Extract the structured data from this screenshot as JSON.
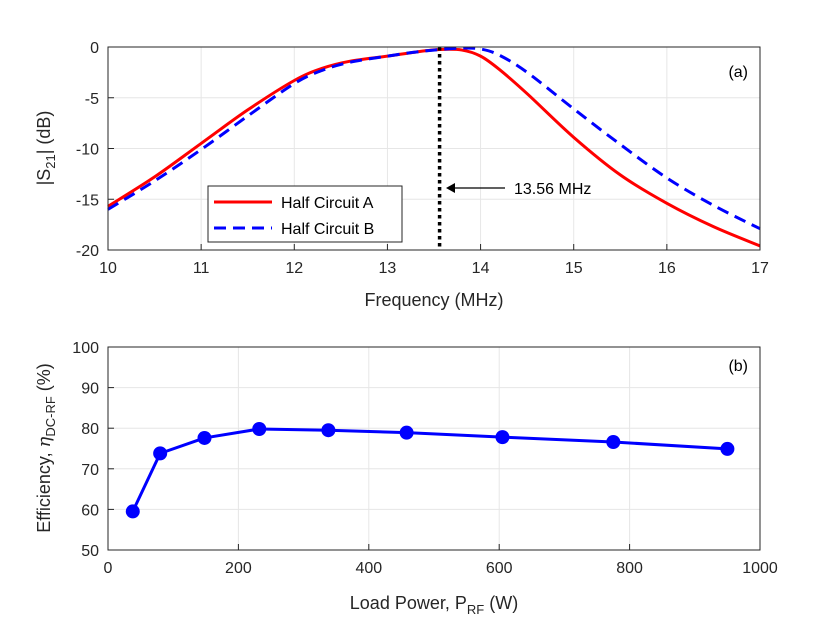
{
  "chart_data": [
    {
      "type": "line",
      "panel_label": "(a)",
      "xlabel": "Frequency (MHz)",
      "ylabel": "|S21| (dB)",
      "ylabel_main": "|S",
      "ylabel_sub": "21",
      "ylabel_tail": "| (dB)",
      "xlim": [
        10,
        17
      ],
      "ylim": [
        -20,
        0
      ],
      "xticks": [
        10,
        11,
        12,
        13,
        14,
        15,
        16,
        17
      ],
      "yticks": [
        0,
        -5,
        -10,
        -15,
        -20
      ],
      "grid": true,
      "legend_position": "bottom-left",
      "series": [
        {
          "name": "Half Circuit A",
          "color": "#ff0000",
          "style": "solid",
          "x": [
            10,
            10.5,
            11,
            11.5,
            12,
            12.3,
            12.6,
            13,
            13.3,
            13.56,
            13.8,
            14,
            14.2,
            14.5,
            15,
            15.5,
            16,
            16.5,
            17
          ],
          "y": [
            -15.7,
            -12.8,
            -9.5,
            -6.2,
            -3.3,
            -2.1,
            -1.4,
            -0.9,
            -0.5,
            -0.25,
            -0.3,
            -0.9,
            -2.2,
            -4.6,
            -8.9,
            -12.6,
            -15.4,
            -17.7,
            -19.6
          ]
        },
        {
          "name": "Half Circuit B",
          "color": "#0000ff",
          "style": "dashed",
          "x": [
            10,
            10.5,
            11,
            11.5,
            12,
            12.3,
            12.6,
            13,
            13.3,
            13.56,
            13.8,
            14,
            14.2,
            14.5,
            15,
            15.5,
            16,
            16.5,
            17
          ],
          "y": [
            -16.0,
            -13.2,
            -10.1,
            -6.8,
            -3.6,
            -2.3,
            -1.5,
            -0.9,
            -0.5,
            -0.25,
            -0.1,
            -0.2,
            -0.8,
            -2.5,
            -6.1,
            -9.6,
            -12.9,
            -15.6,
            -17.9
          ]
        }
      ],
      "marker_line": {
        "x": 13.56,
        "color": "#000000",
        "style": "dotted"
      },
      "annotation": "13.56 MHz"
    },
    {
      "type": "line",
      "panel_label": "(b)",
      "xlabel": "Load Power,  PRF (W)",
      "xlabel_main": "Load Power,  P",
      "xlabel_sub": "RF",
      "xlabel_tail": " (W)",
      "ylabel": "Efficiency,  ηDC-RF (%)",
      "ylabel_main": "Efficiency,  ",
      "ylabel_eta": "η",
      "ylabel_sub": "DC-RF",
      "ylabel_tail": " (%)",
      "xlim": [
        0,
        1000
      ],
      "ylim": [
        50,
        100
      ],
      "xticks": [
        0,
        200,
        400,
        600,
        800,
        1000
      ],
      "yticks": [
        100,
        90,
        80,
        70,
        60,
        50
      ],
      "grid": true,
      "series": [
        {
          "color": "#0000ff",
          "marker": "circle",
          "x": [
            38,
            80,
            148,
            232,
            338,
            458,
            605,
            775,
            950
          ],
          "y": [
            59.5,
            73.8,
            77.6,
            79.8,
            79.5,
            78.9,
            77.8,
            76.6,
            74.9
          ]
        }
      ]
    }
  ]
}
